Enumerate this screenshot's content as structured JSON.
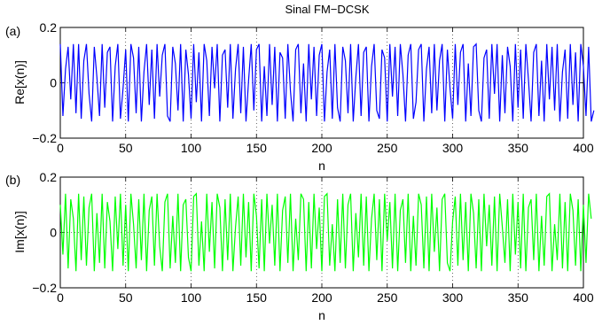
{
  "figure_title": "Sinal FM−DCSK",
  "chart_data": [
    {
      "type": "line",
      "panel_label": "(a)",
      "title": "Sinal FM−DCSK",
      "xlabel": "n",
      "ylabel": "Re[x(n)]",
      "xlim": [
        0,
        400
      ],
      "ylim": [
        -0.2,
        0.2
      ],
      "xticks": [
        0,
        50,
        100,
        150,
        200,
        250,
        300,
        350,
        400
      ],
      "xtick_labels": [
        "0",
        "50",
        "100",
        "150",
        "200",
        "250",
        "300",
        "350",
        "400"
      ],
      "yticks": [
        -0.2,
        0,
        0.2
      ],
      "ytick_labels": [
        "−0.2",
        "0",
        "0.2"
      ],
      "grid": true,
      "color": "#0000ff",
      "series": [
        {
          "x_start": 0,
          "x_step": 2,
          "values": [
            0.14,
            -0.12,
            0.05,
            0.13,
            -0.06,
            0.14,
            -0.11,
            0.14,
            -0.13,
            0.08,
            0.14,
            -0.04,
            -0.14,
            0.13,
            0.02,
            -0.12,
            0.14,
            -0.09,
            0.11,
            0.13,
            -0.14,
            0.06,
            0.14,
            -0.13,
            -0.02,
            0.12,
            -0.14,
            0.14,
            0.09,
            -0.11,
            0.13,
            -0.14,
            0.04,
            0.14,
            -0.08,
            0.12,
            -0.13,
            0.14,
            -0.05,
            0.1,
            0.14,
            -0.12,
            -0.14,
            0.13,
            0.07,
            -0.1,
            0.14,
            -0.14,
            0.12,
            0.03,
            -0.13,
            0.14,
            -0.07,
            0.11,
            -0.14,
            0.14,
            0.08,
            -0.12,
            0.13,
            -0.02,
            0.14,
            -0.14,
            0.1,
            0.12,
            -0.09,
            0.14,
            -0.13,
            0.05,
            0.14,
            -0.11,
            0.13,
            -0.14,
            0.01,
            0.14,
            -0.1,
            0.12,
            0.14,
            -0.14,
            0.06,
            -0.12,
            0.14,
            -0.08,
            0.13,
            -0.14,
            0.11,
            0.09,
            -0.13,
            0.14,
            -0.03,
            -0.14,
            0.12,
            0.14,
            -0.11,
            0.07,
            -0.14,
            0.14,
            -0.06,
            0.13,
            -0.12,
            0.1,
            0.14,
            -0.14,
            0.04,
            0.12,
            -0.13,
            0.14,
            -0.09,
            -0.14,
            0.13,
            0.08,
            -0.11,
            0.14,
            -0.14,
            0.02,
            0.14,
            -0.12,
            0.11,
            0.13,
            -0.14,
            0.06,
            0.14,
            -0.1,
            -0.13,
            0.12,
            0.09,
            -0.14,
            0.14,
            -0.05,
            0.13,
            -0.12,
            0.14,
            0.03,
            -0.14,
            0.1,
            0.14,
            -0.13,
            -0.07,
            0.12,
            0.14,
            -0.14,
            0.05,
            0.13,
            -0.11,
            0.14,
            -0.1,
            0.08,
            0.14,
            -0.14,
            0.12,
            -0.02,
            -0.13,
            0.14,
            -0.08,
            0.11,
            0.14,
            -0.14,
            0.07,
            -0.12,
            0.13,
            0.14,
            -0.1,
            -0.14,
            0.09,
            0.12,
            -0.13,
            0.14,
            -0.04,
            0.14,
            -0.14,
            0.1,
            -0.11,
            0.13,
            0.06,
            -0.14,
            0.14,
            -0.09,
            0.12,
            -0.13,
            0.14,
            0.01,
            -0.14,
            0.11,
            0.14,
            -0.12,
            0.08,
            -0.14,
            0.14,
            -0.06,
            0.13,
            -0.1,
            0.14,
            -0.14,
            0.04,
            0.12,
            -0.13,
            0.14,
            -0.08,
            0.11,
            -0.14,
            0.14,
            0.06,
            -0.12,
            0.13,
            -0.14,
            -0.1
          ]
        }
      ]
    },
    {
      "type": "line",
      "panel_label": "(b)",
      "title": "",
      "xlabel": "n",
      "ylabel": "Im[x(n)]",
      "xlim": [
        0,
        400
      ],
      "ylim": [
        -0.2,
        0.2
      ],
      "xticks": [
        0,
        50,
        100,
        150,
        200,
        250,
        300,
        350,
        400
      ],
      "xtick_labels": [
        "0",
        "50",
        "100",
        "150",
        "200",
        "250",
        "300",
        "350",
        "400"
      ],
      "yticks": [
        -0.2,
        0,
        0.2
      ],
      "ytick_labels": [
        "−0.2",
        "0",
        "0.2"
      ],
      "grid": true,
      "color": "#00ff00",
      "series": [
        {
          "x_start": 0,
          "x_step": 2,
          "values": [
            0.1,
            -0.08,
            0.14,
            -0.13,
            0.12,
            0.05,
            -0.14,
            0.14,
            -0.1,
            0.13,
            -0.12,
            0.09,
            0.14,
            -0.14,
            0.07,
            -0.11,
            0.14,
            -0.13,
            0.11,
            0.04,
            -0.14,
            0.13,
            -0.06,
            0.14,
            -0.12,
            0.1,
            -0.14,
            0.14,
            0.03,
            -0.13,
            0.12,
            -0.1,
            0.14,
            -0.14,
            0.08,
            0.13,
            -0.12,
            0.14,
            -0.05,
            -0.14,
            0.11,
            0.14,
            -0.13,
            0.06,
            -0.11,
            0.14,
            -0.14,
            0.1,
            0.12,
            -0.09,
            -0.14,
            0.13,
            0.14,
            -0.12,
            0.04,
            -0.14,
            0.14,
            -0.07,
            0.11,
            -0.13,
            0.14,
            0.09,
            -0.14,
            0.12,
            -0.1,
            0.14,
            -0.14,
            0.02,
            0.13,
            -0.12,
            0.14,
            -0.09,
            0.11,
            -0.14,
            0.14,
            0.06,
            -0.13,
            0.12,
            -0.14,
            0.14,
            -0.04,
            0.1,
            -0.12,
            0.14,
            -0.14,
            0.08,
            0.13,
            -0.11,
            0.14,
            -0.14,
            0.05,
            -0.1,
            0.14,
            0.12,
            -0.14,
            0.11,
            -0.13,
            0.14,
            -0.06,
            0.09,
            -0.14,
            0.13,
            0.14,
            -0.12,
            0.03,
            -0.14,
            0.12,
            -0.11,
            0.14,
            -0.13,
            0.1,
            0.14,
            -0.14,
            0.07,
            -0.09,
            0.14,
            -0.12,
            0.13,
            -0.14,
            0.05,
            0.14,
            -0.1,
            0.12,
            -0.14,
            0.14,
            -0.03,
            0.11,
            -0.13,
            0.14,
            -0.14,
            0.08,
            0.12,
            -0.11,
            0.14,
            -0.14,
            0.06,
            -0.12,
            0.14,
            0.1,
            -0.13,
            0.13,
            -0.14,
            0.14,
            -0.07,
            0.09,
            -0.14,
            0.12,
            0.14,
            -0.11,
            -0.14,
            0.04,
            0.13,
            -0.12,
            0.14,
            -0.1,
            0.11,
            -0.14,
            0.14,
            0.07,
            -0.13,
            0.12,
            -0.14,
            0.14,
            -0.05,
            0.1,
            -0.12,
            0.13,
            -0.14,
            0.14,
            0.02,
            -0.11,
            0.12,
            -0.14,
            0.14,
            -0.08,
            0.11,
            -0.13,
            0.14,
            -0.14,
            0.09,
            0.12,
            -0.1,
            0.14,
            -0.14,
            0.06,
            -0.12,
            0.13,
            0.14,
            -0.14,
            0.03,
            -0.1,
            0.14,
            -0.13,
            0.11,
            -0.14,
            0.14,
            0.08,
            -0.12,
            0.12,
            -0.14,
            0.1,
            -0.11,
            0.14,
            0.05
          ]
        }
      ]
    }
  ]
}
